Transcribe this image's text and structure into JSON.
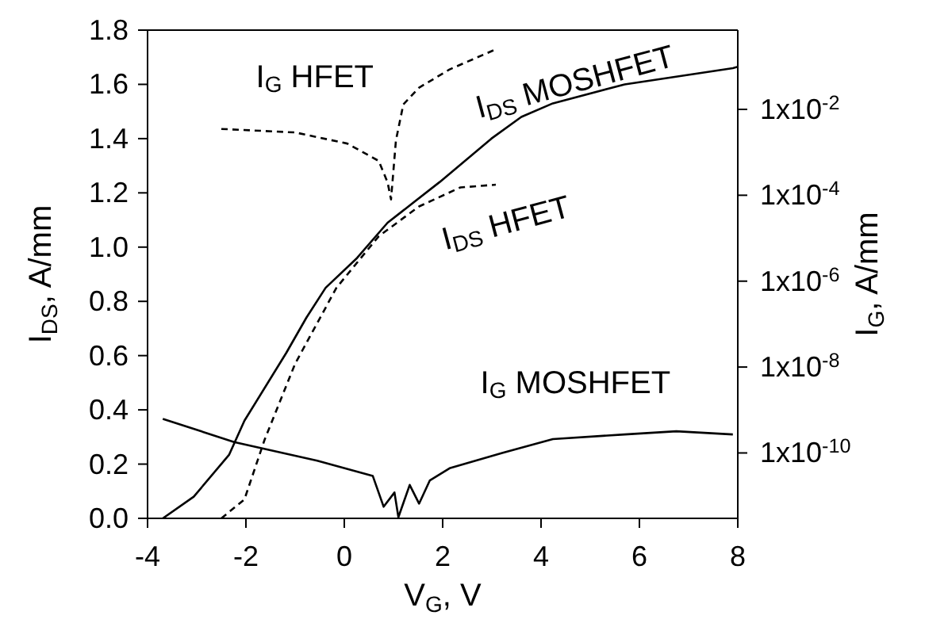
{
  "chart_data": {
    "type": "line",
    "xlabel": "V$_{G}$, V",
    "ylabel": "I$_{DS}$, A/mm",
    "y2label": "I$_{G}$, A/mm",
    "xlim": [
      -4,
      8
    ],
    "xticks": [
      -4,
      -2,
      0,
      2,
      4,
      6,
      8
    ],
    "ylim": [
      0,
      1.8
    ],
    "yticks": [
      {
        "value": 0,
        "label": "0.0"
      },
      0.2,
      0.4,
      0.6,
      0.8,
      {
        "value": 1,
        "label": "1.0"
      },
      1.2,
      1.4,
      1.6,
      1.8
    ],
    "y2lim": [
      3e-12,
      0.7
    ],
    "y2ticks": [
      {
        "value": 0.01,
        "label": "1x10$^{-2}$"
      },
      {
        "value": 0.0001,
        "label": "1x10$^{-4}$"
      },
      {
        "value": 1e-06,
        "label": "1x10$^{-6}$"
      },
      {
        "value": 1e-08,
        "label": "1x10$^{-8}$"
      },
      {
        "value": 1e-10,
        "label": "1x10$^{-10}$"
      }
    ],
    "log": "y2",
    "legend": false,
    "marker": "none",
    "series": [
      {
        "name": "I$_{DS}$ MOSHFET",
        "color": "#000000",
        "line_style": "solid",
        "x": [
          -3.69,
          -3.06,
          -2.34,
          -2.03,
          -1.18,
          -0.77,
          -0.38,
          0.26,
          0.88,
          1.94,
          2.99,
          3.6,
          4.24,
          5.7,
          7.9,
          8
        ],
        "values": [
          0,
          0.08,
          0.235,
          0.36,
          0.61,
          0.74,
          0.85,
          0.96,
          1.09,
          1.24,
          1.4,
          1.48,
          1.53,
          1.6,
          1.66,
          1.665
        ]
      },
      {
        "name": "I$_{DS}$ HFET",
        "color": "#000000",
        "line_style": "dashed",
        "x": [
          -2.5,
          -2.03,
          -1.62,
          -1,
          -0.16,
          0.7,
          1.52,
          2.36,
          3.08
        ],
        "values": [
          0,
          0.07,
          0.29,
          0.57,
          0.85,
          1.04,
          1.15,
          1.22,
          1.23
        ]
      },
      {
        "name": "I$_{G}$ HFET",
        "color": "#000000",
        "line_style": "dashed",
        "axis": "y2",
        "x": [
          -2.5,
          -1,
          0.06,
          0.7,
          0.88,
          0.95,
          1.05,
          1.2,
          1.52,
          2.14,
          3.08
        ],
        "values": [
          0.0035,
          0.0029,
          0.0016,
          0.00063,
          0.0002,
          8e-05,
          0.0019,
          0.013,
          0.032,
          0.085,
          0.25
        ]
      },
      {
        "name": "I$_{G}$ MOSHFET",
        "color": "#000000",
        "line_style": "solid",
        "axis": "y2",
        "x": [
          -3.69,
          -2.24,
          -0.55,
          0.58,
          0.8,
          1.02,
          1.1,
          1.33,
          1.52,
          1.74,
          2.14,
          3.21,
          4.24,
          5.7,
          6.75,
          7.9
        ],
        "values": [
          6.2e-10,
          1.8e-10,
          6.6e-11,
          2.9e-11,
          5.6e-12,
          1.2e-11,
          3.2e-12,
          1.8e-11,
          6.6e-12,
          2.3e-11,
          4.4e-11,
          1e-10,
          2.1e-10,
          2.7e-10,
          3.2e-10,
          2.7e-10
        ]
      }
    ]
  }
}
